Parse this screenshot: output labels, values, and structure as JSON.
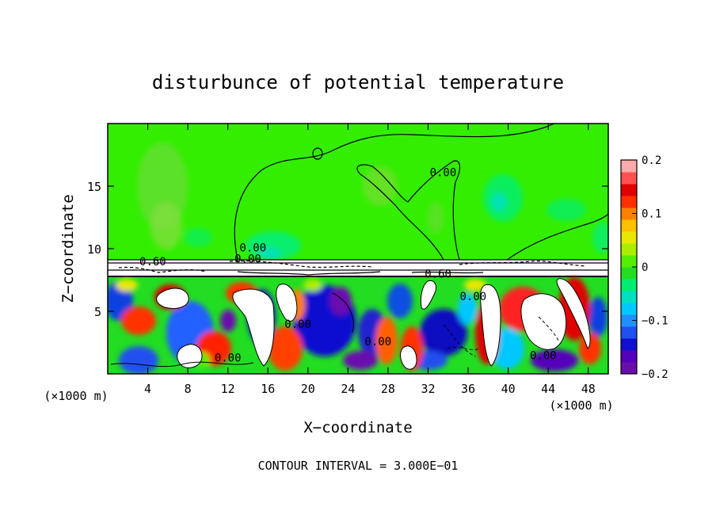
{
  "chart_data": {
    "type": "heatmap",
    "title": "disturbunce of potential temperature",
    "xlabel": "X−coordinate",
    "ylabel": "Z−coordinate",
    "x_unit_left": "(×1000 m)",
    "x_unit_right": "(×1000 m)",
    "xlim": [
      0,
      50
    ],
    "ylim": [
      0,
      20
    ],
    "xticks": [
      4,
      8,
      12,
      16,
      20,
      24,
      28,
      32,
      36,
      40,
      44,
      48
    ],
    "yticks": [
      5,
      10,
      15
    ],
    "colorbar": {
      "min": -0.2,
      "max": 0.2,
      "ticks": [
        0.2,
        0.1,
        0,
        -0.1,
        -0.2
      ],
      "tick_labels": [
        "0.2",
        "0.1",
        "0",
        "−0.1",
        "−0.2"
      ]
    },
    "contour_labels": [
      {
        "text": "0.00",
        "x": 33.5,
        "y": 16.1
      },
      {
        "text": "0.00",
        "x": 14.5,
        "y": 10.1
      },
      {
        "text": "0.00",
        "x": 14.0,
        "y": 9.2
      },
      {
        "text": "0.60",
        "x": 4.5,
        "y": 9.0
      },
      {
        "text": "0.60",
        "x": 33.0,
        "y": 8.0
      },
      {
        "text": "0.00",
        "x": 36.5,
        "y": 6.2
      },
      {
        "text": "0.00",
        "x": 19.0,
        "y": 4.0
      },
      {
        "text": "0.00",
        "x": 27.0,
        "y": 2.6
      },
      {
        "text": "0.00",
        "x": 12.0,
        "y": 1.3
      },
      {
        "text": "0.00",
        "x": 43.5,
        "y": 1.5
      }
    ],
    "footer": "CONTOUR INTERVAL = 3.000E−01"
  },
  "palette": {
    "colorbar": [
      "#6a0dad",
      "#5500bb",
      "#1010d0",
      "#2050f0",
      "#2090ff",
      "#00c8ff",
      "#00e0c0",
      "#00ee70",
      "#22dd22",
      "#55ee00",
      "#aaee00",
      "#e8e800",
      "#ffc000",
      "#ff8000",
      "#ff3000",
      "#e00000",
      "#ff5050",
      "#ffaaaa"
    ],
    "upper_green": "#33ee00",
    "band_white": "#ffffff"
  }
}
